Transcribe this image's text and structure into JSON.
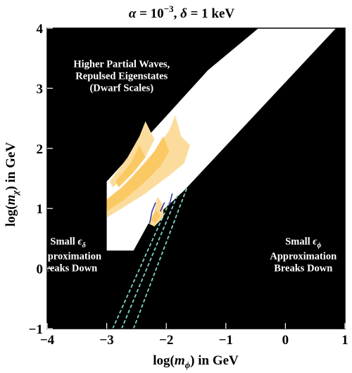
{
  "chart_data": {
    "type": "region",
    "title_parts": {
      "alpha_sym": "α",
      "alpha_val": " = 10",
      "alpha_exp": "−3",
      "delta_sym": "δ",
      "delta_val": " = 1 keV"
    },
    "xlabel": {
      "pre": "log(",
      "var": "m",
      "sub": "ϕ",
      "post": ") in GeV"
    },
    "ylabel": {
      "pre": "log(",
      "var": "m",
      "sub": "χ",
      "post": ") in GeV"
    },
    "xlim": [
      -4,
      1
    ],
    "ylim": [
      -1,
      4
    ],
    "x_ticks": [
      -4,
      -3,
      -2,
      -1,
      0,
      1
    ],
    "y_ticks": [
      -1,
      0,
      1,
      2,
      3,
      4
    ],
    "x_tick_labels": [
      "−4",
      "−3",
      "−2",
      "−1",
      "0",
      "1"
    ],
    "y_tick_labels": [
      "−1",
      "0",
      "1",
      "2",
      "3",
      "4"
    ],
    "background_color": "#000000",
    "allowed_band": {
      "color": "#ffffff",
      "polygon": [
        [
          -3.0,
          0.3
        ],
        [
          -2.55,
          0.3
        ],
        [
          -2.3,
          0.75
        ],
        [
          -1.7,
          1.3
        ],
        [
          0.85,
          4.0
        ],
        [
          -0.45,
          4.0
        ],
        [
          -1.3,
          3.3
        ],
        [
          -3.0,
          1.45
        ]
      ]
    },
    "resonance_regions": [
      {
        "color": "#fcdc9c",
        "polygon": [
          [
            -3.0,
            1.05
          ],
          [
            -2.6,
            1.5
          ],
          [
            -2.2,
            1.95
          ],
          [
            -1.95,
            2.3
          ],
          [
            -1.85,
            2.55
          ],
          [
            -1.75,
            2.2
          ],
          [
            -1.6,
            2.05
          ],
          [
            -1.7,
            1.75
          ],
          [
            -1.95,
            1.55
          ],
          [
            -2.35,
            1.25
          ],
          [
            -2.75,
            1.0
          ],
          [
            -3.0,
            0.85
          ]
        ]
      },
      {
        "color": "#fbc964",
        "polygon": [
          [
            -3.0,
            1.15
          ],
          [
            -2.75,
            1.35
          ],
          [
            -2.45,
            1.65
          ],
          [
            -2.2,
            1.95
          ],
          [
            -2.05,
            2.2
          ],
          [
            -1.95,
            1.95
          ],
          [
            -2.1,
            1.7
          ],
          [
            -2.35,
            1.45
          ],
          [
            -2.7,
            1.15
          ],
          [
            -3.0,
            0.95
          ]
        ]
      },
      {
        "color": "#fcdc9c",
        "polygon": [
          [
            -2.95,
            1.45
          ],
          [
            -2.65,
            1.85
          ],
          [
            -2.45,
            2.2
          ],
          [
            -2.35,
            2.45
          ],
          [
            -2.2,
            2.15
          ],
          [
            -2.35,
            1.85
          ],
          [
            -2.6,
            1.6
          ],
          [
            -2.9,
            1.35
          ]
        ]
      },
      {
        "color": "#fbc964",
        "polygon": [
          [
            -2.85,
            1.45
          ],
          [
            -2.6,
            1.75
          ],
          [
            -2.45,
            2.05
          ],
          [
            -2.35,
            1.85
          ],
          [
            -2.55,
            1.6
          ],
          [
            -2.8,
            1.35
          ]
        ]
      },
      {
        "color": "#fcdc9c",
        "polygon": [
          [
            -2.3,
            0.75
          ],
          [
            -2.2,
            0.95
          ],
          [
            -2.15,
            1.2
          ],
          [
            -2.05,
            1.05
          ],
          [
            -2.05,
            0.85
          ],
          [
            -2.2,
            0.7
          ]
        ]
      },
      {
        "color": "#fbc964",
        "polygon": [
          [
            -2.25,
            0.8
          ],
          [
            -2.18,
            0.98
          ],
          [
            -2.1,
            0.88
          ],
          [
            -2.18,
            0.76
          ]
        ]
      }
    ],
    "breakdown_lines": {
      "color": "#7fd4c8",
      "lines": [
        [
          [
            -2.9,
            -1.0
          ],
          [
            -1.95,
            1.1
          ]
        ],
        [
          [
            -2.75,
            -1.0
          ],
          [
            -1.8,
            1.25
          ]
        ],
        [
          [
            -2.55,
            -1.0
          ],
          [
            -1.65,
            1.35
          ]
        ]
      ]
    },
    "blue_curves": {
      "color": "#3a3aa8",
      "lines": [
        [
          [
            -2.28,
            0.75
          ],
          [
            -2.24,
            0.95
          ],
          [
            -2.18,
            1.1
          ]
        ],
        [
          [
            -2.1,
            0.95
          ],
          [
            -2.03,
            1.1
          ]
        ],
        [
          [
            -1.95,
            1.05
          ],
          [
            -1.9,
            1.25
          ]
        ]
      ]
    },
    "annotations": [
      {
        "lines": [
          "Higher Partial Waves,",
          "Repulsed Eigenstates",
          "(Dwarf Scales)"
        ],
        "at": [
          -2.75,
          3.35
        ]
      },
      {
        "lines": [
          {
            "pre": "Small ",
            "sym": "ϵ",
            "sub": "δ"
          },
          "Approximation",
          "Breaks Down"
        ],
        "at": [
          -3.65,
          0.4
        ]
      },
      {
        "lines": [
          {
            "pre": "Small ",
            "sym": "ϵ",
            "sub": "ϕ"
          },
          "Approximation",
          "Breaks Down"
        ],
        "at": [
          0.3,
          0.4
        ]
      }
    ]
  }
}
